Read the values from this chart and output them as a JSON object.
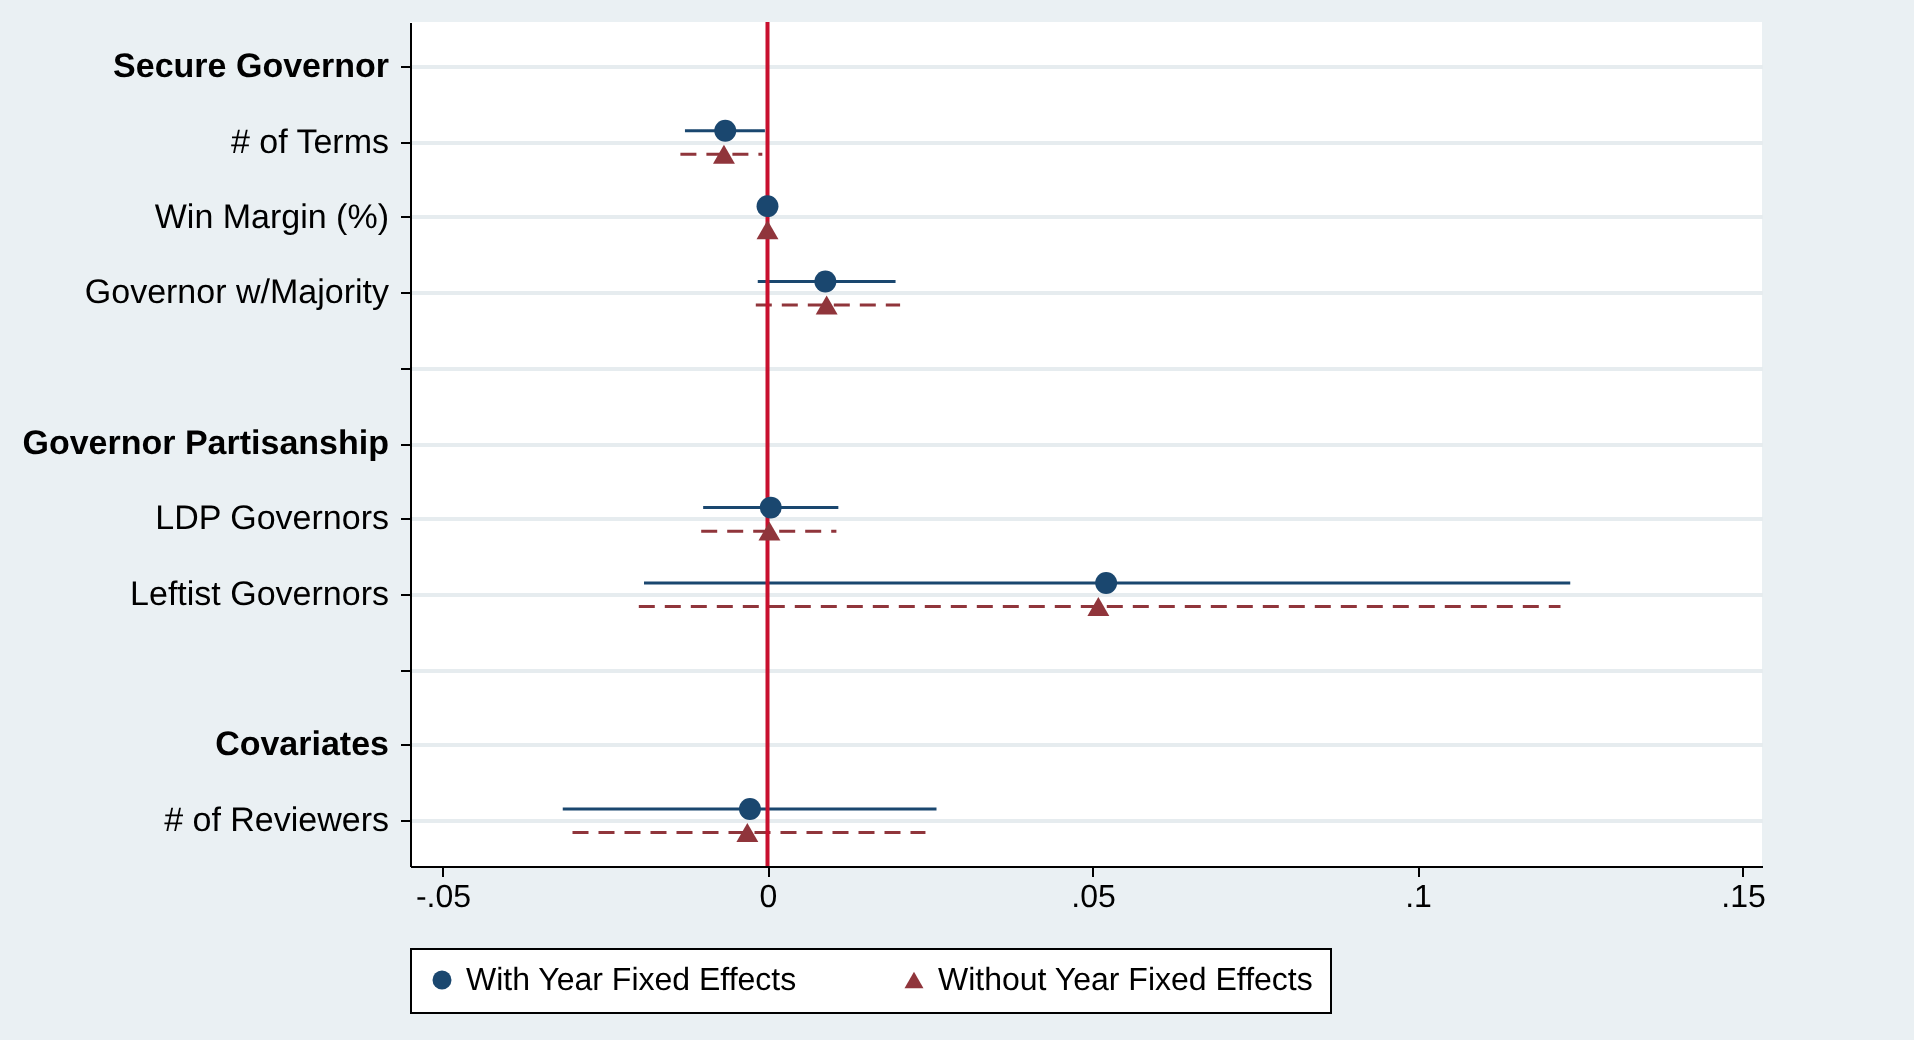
{
  "chart_data": {
    "type": "scatter",
    "orientation": "horizontal",
    "categories": [
      "Secure Governor",
      "# of Terms",
      "Win Margin (%)",
      "Governor w/Majority",
      null,
      "Governor Partisanship",
      "LDP Governors",
      "Leftist Governors",
      null,
      "Covariates",
      "# of Reviewers"
    ],
    "series": [
      {
        "name": "With Year Fixed Effects",
        "color": "#1a476f",
        "marker": "circle",
        "line_style": "solid",
        "values": [
          null,
          -0.0065,
          0,
          0.0089,
          null,
          null,
          0.0005,
          0.0521,
          null,
          null,
          -0.0027
        ],
        "errors": [
          null,
          [
            -0.0127,
            -0.0004
          ],
          null,
          [
            -0.0015,
            0.0197
          ],
          null,
          null,
          [
            -0.0099,
            0.0109
          ],
          [
            -0.019,
            0.1235
          ],
          null,
          null,
          [
            -0.0315,
            0.026
          ]
        ]
      },
      {
        "name": "Without Year Fixed Effects",
        "color": "#90353b",
        "marker": "triangle",
        "line_style": "dashed",
        "values": [
          null,
          -0.0067,
          0,
          0.0091,
          null,
          null,
          0.0003,
          0.0509,
          null,
          null,
          -0.0031
        ],
        "errors": [
          null,
          [
            -0.0134,
            -0.0008
          ],
          null,
          [
            -0.0018,
            0.0204
          ],
          null,
          null,
          [
            -0.0102,
            0.0106
          ],
          [
            -0.0198,
            0.122
          ],
          null,
          null,
          [
            -0.03,
            0.0243
          ]
        ]
      }
    ],
    "xlim": [
      -0.055,
      0.153
    ],
    "xticks": [
      {
        "value": -0.05,
        "label": "-.05"
      },
      0,
      {
        "value": 0.05,
        "label": ".05"
      },
      {
        "value": 0.1,
        "label": ".1"
      },
      {
        "value": 0.15,
        "label": ".15"
      }
    ],
    "ref_lines": [
      {
        "axis": "x",
        "value": 0,
        "color": "#c8102e"
      }
    ],
    "grid": "y",
    "legend": "bottom"
  }
}
